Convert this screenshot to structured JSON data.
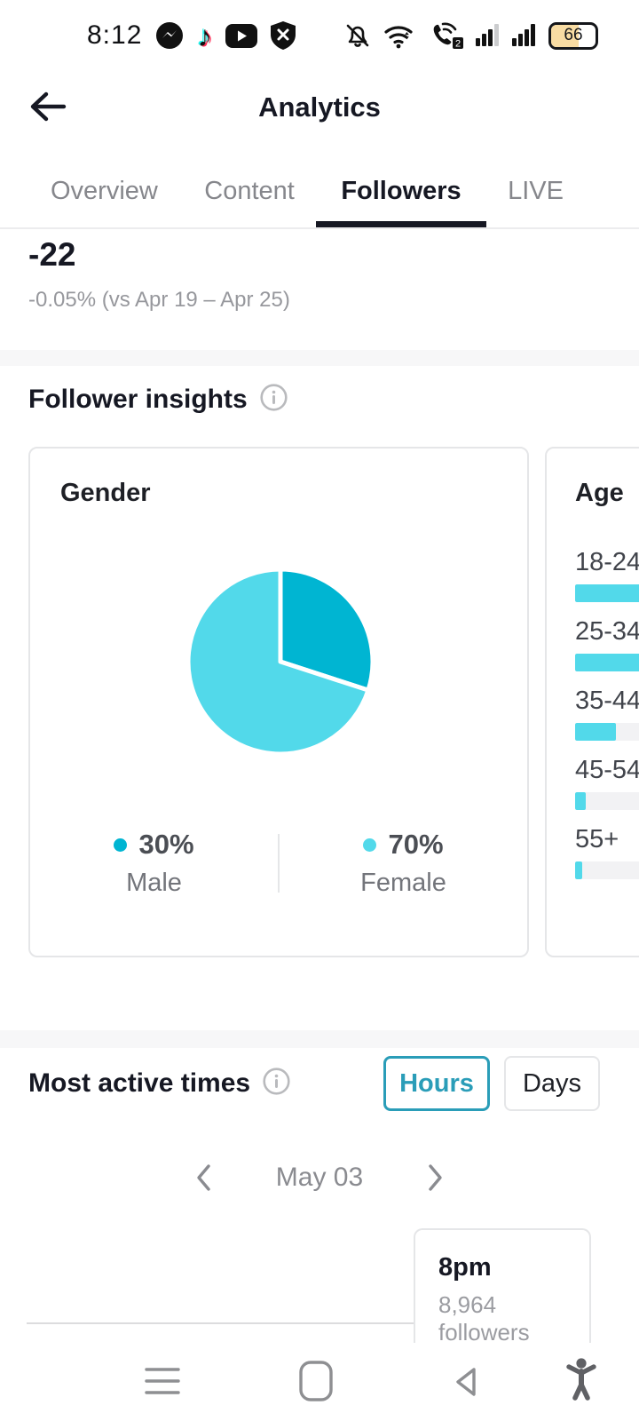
{
  "status_bar": {
    "time": "8:12",
    "battery_percent": "66",
    "left_icons": [
      "messenger-icon",
      "tiktok-icon",
      "youtube-icon",
      "shield-x-icon"
    ],
    "right_icons": [
      "bell-muted-icon",
      "wifi-icon",
      "wifi-calling-sim2-icon",
      "signal-sim1-icon",
      "signal-sim2-icon",
      "battery-icon"
    ],
    "glyphs": {
      "music_note": "♪",
      "sim_badge": "2"
    }
  },
  "header": {
    "title": "Analytics"
  },
  "tabs": {
    "items": [
      {
        "label": "Overview",
        "active": false
      },
      {
        "label": "Content",
        "active": false
      },
      {
        "label": "Followers",
        "active": true
      },
      {
        "label": "LIVE",
        "active": false
      }
    ]
  },
  "followers_trend": {
    "delta": "-22",
    "comparison": "-0.05% (vs Apr 19 – Apr 25)"
  },
  "follower_insights": {
    "heading": "Follower insights"
  },
  "most_active_times": {
    "heading": "Most active times",
    "toggle": {
      "hours": "Hours",
      "days": "Days",
      "selected": "Hours"
    },
    "date": "May 03",
    "tooltip": {
      "time": "8pm",
      "followers": "8,964 followers"
    }
  },
  "chart_data": [
    {
      "type": "pie",
      "title": "Gender",
      "start_angle": "12-oclock",
      "direction": "clockwise",
      "legend_position": "bottom",
      "slices": [
        {
          "label": "Male",
          "percent": 30,
          "percent_label": "30%",
          "color": "#00b5d2"
        },
        {
          "label": "Female",
          "percent": 70,
          "percent_label": "70%",
          "color": "#52d9ea"
        }
      ]
    },
    {
      "type": "bar",
      "title": "Age",
      "orientation": "horizontal",
      "categories": [
        "18-24",
        "25-34",
        "35-44",
        "45-54",
        "55+"
      ],
      "fill_percent_of_track": [
        100,
        100,
        23,
        6,
        4
      ],
      "bar_color": "#52d9ea",
      "track_color": "#f2f2f4",
      "clipped_by_screen_edge": true
    }
  ],
  "colors": {
    "dark_text": "#161823",
    "male_teal": "#00b5d2",
    "female_cyan": "#52d9ea",
    "selected_toggle_teal": "#2a9db8",
    "divider_gray": "#f7f7f8",
    "border_gray": "#e5e6e8",
    "battery_fill": "#f8dca3"
  },
  "bottom_nav": {
    "icons": [
      "menu-icon",
      "home-icon",
      "back-icon",
      "accessibility-icon"
    ]
  }
}
